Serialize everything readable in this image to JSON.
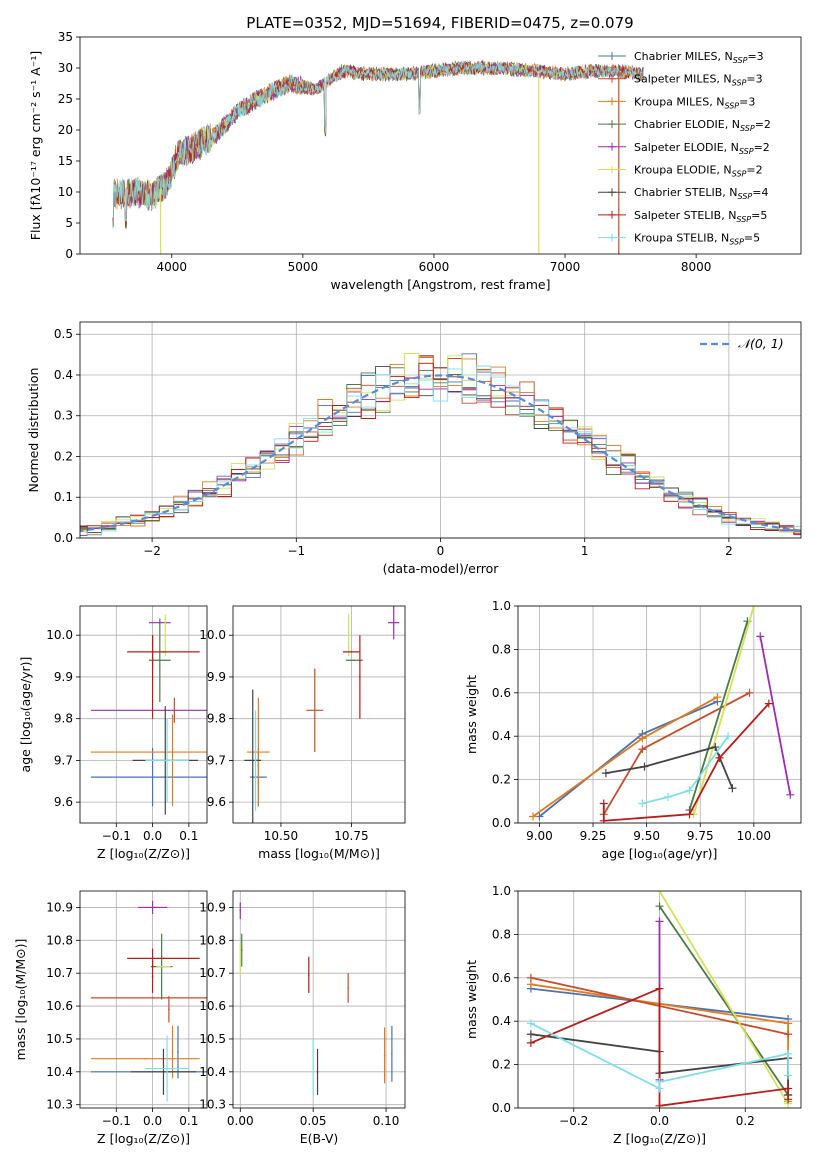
{
  "figure": {
    "title": "PLATE=0352, MJD=51694, FIBERID=0475, z=0.079"
  },
  "series_styles": [
    {
      "name": "Chabrier MILES",
      "color": "#4c72b0",
      "legend": "Chabrier MILES, N",
      "nssp": "3"
    },
    {
      "name": "Salpeter MILES",
      "color": "#c44e2c",
      "legend": "Salpeter MILES, N",
      "nssp": "3"
    },
    {
      "name": "Kroupa MILES",
      "color": "#e07b1f",
      "legend": "Kroupa MILES, N",
      "nssp": "3"
    },
    {
      "name": "Chabrier ELODIE",
      "color": "#4a7a4a",
      "legend": "Chabrier ELODIE, N",
      "nssp": "2"
    },
    {
      "name": "Salpeter ELODIE",
      "color": "#9b2fae",
      "legend": "Salpeter ELODIE, N",
      "nssp": "2"
    },
    {
      "name": "Kroupa ELODIE",
      "color": "#d4e157",
      "legend": "Kroupa ELODIE, N",
      "nssp": "2"
    },
    {
      "name": "Chabrier STELIB",
      "color": "#444444",
      "legend": "Chabrier STELIB, N",
      "nssp": "4"
    },
    {
      "name": "Salpeter STELIB",
      "color": "#b71c1c",
      "legend": "Salpeter STELIB, N",
      "nssp": "5"
    },
    {
      "name": "Kroupa STELIB",
      "color": "#80deea",
      "legend": "Kroupa STELIB, N",
      "nssp": "5"
    }
  ],
  "chart_data": [
    {
      "type": "line",
      "id": "spectrum",
      "title": "PLATE=0352, MJD=51694, FIBERID=0475, z=0.079",
      "xlabel": "wavelength [Angstrom, rest frame]",
      "ylabel": "Flux [fλ10⁻¹⁷ erg cm⁻² s⁻¹ A⁻¹]",
      "xlim": [
        3300,
        8800
      ],
      "ylim": [
        0,
        35
      ],
      "xticks": [
        4000,
        5000,
        6000,
        7000,
        8000
      ],
      "yticks": [
        0,
        5,
        10,
        15,
        20,
        25,
        30,
        35
      ],
      "legend_position": "right",
      "continuum": {
        "x": [
          3550,
          3700,
          3850,
          3950,
          4050,
          4200,
          4350,
          4500,
          4700,
          4900,
          5100,
          5300,
          5500,
          5800,
          6000,
          6200,
          6500,
          6800,
          7000,
          7200,
          7400,
          7600
        ],
        "y": [
          9.5,
          10,
          9.5,
          11,
          16,
          17.5,
          19.5,
          23,
          25.5,
          27.5,
          26.5,
          29.5,
          29,
          29,
          29.5,
          30,
          30,
          29.5,
          29,
          29.5,
          29.5,
          29
        ]
      },
      "features": {
        "drop_lines": [
          3915,
          6800,
          7410
        ],
        "narrow_dips": [
          {
            "x": 5170,
            "y": 19
          },
          {
            "x": 5890,
            "y": 22.5
          },
          {
            "x": 4305,
            "y": 17
          },
          {
            "x": 3550,
            "y": 4
          },
          {
            "x": 3650,
            "y": 4
          }
        ]
      }
    },
    {
      "type": "bar",
      "id": "residuals",
      "xlabel": "(data-model)/error",
      "ylabel": "Normed distribution",
      "xlim": [
        -2.5,
        2.5
      ],
      "ylim": [
        0,
        0.53
      ],
      "xticks": [
        -2,
        -1,
        0,
        1,
        2
      ],
      "yticks": [
        0.0,
        0.1,
        0.2,
        0.3,
        0.4,
        0.5
      ],
      "legend": "𝒩(0, 1)",
      "legend_position": "top-right",
      "bin_width": 0.1,
      "gaussian": {
        "mean": 0,
        "sigma": 1,
        "color": "#5b8bd6"
      }
    },
    {
      "type": "scatter",
      "id": "age-vs-Z",
      "xlabel": "Z [log₁₀(Z/Z⊙)]",
      "ylabel": "age  [log₁₀(age/yr)]",
      "xlim": [
        -0.2,
        0.15
      ],
      "ylim": [
        9.55,
        10.07
      ],
      "xticks": [
        -0.1,
        0.0,
        0.1
      ],
      "yticks": [
        9.6,
        9.7,
        9.8,
        9.9,
        10.0
      ],
      "points": [
        {
          "series": 0,
          "x": 0.0,
          "y": 9.66,
          "xerr": 0.17,
          "yerr": 0.07
        },
        {
          "series": 1,
          "x": 0.06,
          "y": 9.82,
          "xerr": 0.0,
          "yerr": 0.03
        },
        {
          "series": 2,
          "x": 0.0,
          "y": 9.72,
          "xerr": 0.17,
          "yerr": 0.0
        },
        {
          "series": 2,
          "x": 0.055,
          "y": 9.7,
          "xerr": 0.0,
          "yerr": 0.11
        },
        {
          "series": 3,
          "x": 0.02,
          "y": 9.94,
          "xerr": 0.03,
          "yerr": 0.1
        },
        {
          "series": 4,
          "x": 0.02,
          "y": 10.03,
          "xerr": 0.03,
          "yerr": 0.0
        },
        {
          "series": 4,
          "x": 0.0,
          "y": 9.82,
          "xerr": 0.17,
          "yerr": 0.0
        },
        {
          "series": 5,
          "x": 0.035,
          "y": 10.0,
          "xerr": 0.0,
          "yerr": 0.05
        },
        {
          "series": 6,
          "x": 0.035,
          "y": 9.7,
          "xerr": 0.09,
          "yerr": 0.13
        },
        {
          "series": 7,
          "x": 0.0,
          "y": 9.96,
          "xerr": 0.0,
          "yerr": 0.04
        },
        {
          "series": 7,
          "x": 0.03,
          "y": 9.96,
          "xerr": 0.1,
          "yerr": 0.0
        },
        {
          "series": 7,
          "x": 0.0,
          "y": 9.9,
          "xerr": 0.0,
          "yerr": 0.1
        },
        {
          "series": 8,
          "x": 0.04,
          "y": 9.7,
          "xerr": 0.06,
          "yerr": 0.1
        }
      ]
    },
    {
      "type": "scatter",
      "id": "age-vs-mass",
      "xlabel": "mass [log₁₀(M/M⊙)]",
      "ylabel": "",
      "xlim": [
        10.33,
        10.94
      ],
      "ylim": [
        9.55,
        10.07
      ],
      "xticks": [
        10.5,
        10.75
      ],
      "yticks": [
        9.6,
        9.7,
        9.8,
        9.9,
        10.0
      ],
      "points": [
        {
          "series": 0,
          "x": 10.42,
          "y": 9.66,
          "xerr": 0.03,
          "yerr": 0.07
        },
        {
          "series": 1,
          "x": 10.62,
          "y": 9.82,
          "xerr": 0.03,
          "yerr": 0.1
        },
        {
          "series": 2,
          "x": 10.42,
          "y": 9.72,
          "xerr": 0.04,
          "yerr": 0.13
        },
        {
          "series": 3,
          "x": 10.76,
          "y": 9.94,
          "xerr": 0.03,
          "yerr": 0.0
        },
        {
          "series": 4,
          "x": 10.9,
          "y": 10.03,
          "xerr": 0.02,
          "yerr": 0.04
        },
        {
          "series": 5,
          "x": 10.74,
          "y": 10.0,
          "xerr": 0.0,
          "yerr": 0.05
        },
        {
          "series": 6,
          "x": 10.4,
          "y": 9.7,
          "xerr": 0.03,
          "yerr": 0.17
        },
        {
          "series": 7,
          "x": 10.75,
          "y": 9.96,
          "xerr": 0.03,
          "yerr": 0.0
        },
        {
          "series": 7,
          "x": 10.78,
          "y": 9.9,
          "xerr": 0.0,
          "yerr": 0.1
        },
        {
          "series": 8,
          "x": 10.41,
          "y": 9.7,
          "xerr": 0.0,
          "yerr": 0.12
        }
      ]
    },
    {
      "type": "line",
      "id": "massweight-vs-age",
      "xlabel": "age  [log₁₀(age/yr)]",
      "ylabel": "mass weight",
      "xlim": [
        8.9,
        10.22
      ],
      "ylim": [
        0,
        1
      ],
      "xticks": [
        9.0,
        9.25,
        9.5,
        9.75,
        10.0
      ],
      "yticks": [
        0.0,
        0.2,
        0.4,
        0.6,
        0.8,
        1.0
      ],
      "series": [
        {
          "series": 0,
          "x": [
            9.0,
            9.48,
            9.83
          ],
          "y": [
            0.03,
            0.41,
            0.56
          ]
        },
        {
          "series": 2,
          "x": [
            8.97,
            9.48,
            9.83
          ],
          "y": [
            0.03,
            0.39,
            0.58
          ]
        },
        {
          "series": 1,
          "x": [
            9.3,
            9.48,
            9.98
          ],
          "y": [
            0.04,
            0.34,
            0.6
          ]
        },
        {
          "series": 3,
          "x": [
            9.7,
            9.97
          ],
          "y": [
            0.06,
            0.93
          ]
        },
        {
          "series": 4,
          "x": [
            10.03,
            10.17
          ],
          "y": [
            0.86,
            0.13
          ]
        },
        {
          "series": 5,
          "x": [
            9.72,
            10.0
          ],
          "y": [
            0.04,
            1.0
          ]
        },
        {
          "series": 6,
          "x": [
            9.31,
            9.49,
            9.82,
            9.9
          ],
          "y": [
            0.23,
            0.26,
            0.35,
            0.16
          ]
        },
        {
          "series": 7,
          "x": [
            9.3,
            9.3,
            9.7,
            9.84,
            10.07
          ],
          "y": [
            0.09,
            0.01,
            0.04,
            0.3,
            0.55
          ]
        },
        {
          "series": 8,
          "x": [
            9.48,
            9.6,
            9.7,
            9.88
          ],
          "y": [
            0.09,
            0.12,
            0.15,
            0.4
          ]
        }
      ]
    },
    {
      "type": "scatter",
      "id": "mass-vs-Z",
      "xlabel": "Z [log₁₀(Z/Z⊙)]",
      "ylabel": "mass [log₁₀(M/M⊙)]",
      "xlim": [
        -0.2,
        0.15
      ],
      "ylim": [
        10.29,
        10.95
      ],
      "xticks": [
        -0.1,
        0.0,
        0.1
      ],
      "yticks": [
        10.3,
        10.4,
        10.5,
        10.6,
        10.7,
        10.8,
        10.9
      ],
      "points": [
        {
          "series": 0,
          "x": 0.0,
          "y": 10.4,
          "xerr": 0.17,
          "yerr": 0.0
        },
        {
          "series": 0,
          "x": 0.07,
          "y": 10.46,
          "xerr": 0.0,
          "yerr": 0.08
        },
        {
          "series": 1,
          "x": 0.0,
          "y": 10.625,
          "xerr": 0.17,
          "yerr": 0.0
        },
        {
          "series": 1,
          "x": 0.045,
          "y": 10.59,
          "xerr": 0.0,
          "yerr": 0.04
        },
        {
          "series": 2,
          "x": -0.02,
          "y": 10.44,
          "xerr": 0.15,
          "yerr": 0.0
        },
        {
          "series": 2,
          "x": 0.055,
          "y": 10.46,
          "xerr": 0.0,
          "yerr": 0.08
        },
        {
          "series": 3,
          "x": 0.025,
          "y": 10.72,
          "xerr": 0.03,
          "yerr": 0.1
        },
        {
          "series": 4,
          "x": 0.0,
          "y": 10.9,
          "xerr": 0.04,
          "yerr": 0.02
        },
        {
          "series": 5,
          "x": 0.03,
          "y": 10.72,
          "xerr": 0.02,
          "yerr": 0.0
        },
        {
          "series": 6,
          "x": 0.03,
          "y": 10.4,
          "xerr": 0.09,
          "yerr": 0.07
        },
        {
          "series": 7,
          "x": 0.0,
          "y": 10.745,
          "xerr": 0.0,
          "yerr": 0.03
        },
        {
          "series": 7,
          "x": 0.03,
          "y": 10.745,
          "xerr": 0.1,
          "yerr": 0.0
        },
        {
          "series": 7,
          "x": 0.0,
          "y": 10.69,
          "xerr": 0.0,
          "yerr": 0.05
        },
        {
          "series": 8,
          "x": 0.04,
          "y": 10.41,
          "xerr": 0.06,
          "yerr": 0.1
        }
      ]
    },
    {
      "type": "scatter",
      "id": "mass-vs-EBV",
      "xlabel": "E(B-V)",
      "ylabel": "",
      "xlim": [
        -0.005,
        0.113
      ],
      "ylim": [
        10.29,
        10.95
      ],
      "xticks": [
        0.0,
        0.05,
        0.1
      ],
      "yticks": [
        10.3,
        10.4,
        10.5,
        10.6,
        10.7,
        10.8,
        10.9
      ],
      "points": [
        {
          "series": 0,
          "x": 0.104,
          "y": 10.455,
          "xerr": 0.0,
          "yerr": 0.085
        },
        {
          "series": 1,
          "x": 0.074,
          "y": 10.655,
          "xerr": 0.0,
          "yerr": 0.045
        },
        {
          "series": 2,
          "x": 0.099,
          "y": 10.45,
          "xerr": 0.0,
          "yerr": 0.085
        },
        {
          "series": 3,
          "x": 0.001,
          "y": 10.77,
          "xerr": 0.0,
          "yerr": 0.05
        },
        {
          "series": 4,
          "x": 0.0,
          "y": 10.89,
          "xerr": 0.0,
          "yerr": 0.025
        },
        {
          "series": 5,
          "x": 0.0,
          "y": 10.74,
          "xerr": 0.0,
          "yerr": 0.05
        },
        {
          "series": 6,
          "x": 0.053,
          "y": 10.4,
          "xerr": 0.0,
          "yerr": 0.07
        },
        {
          "series": 7,
          "x": 0.047,
          "y": 10.695,
          "xerr": 0.0,
          "yerr": 0.055
        },
        {
          "series": 8,
          "x": 0.05,
          "y": 10.415,
          "xerr": 0.0,
          "yerr": 0.085
        }
      ]
    },
    {
      "type": "line",
      "id": "massweight-vs-Z",
      "xlabel": "Z [log₁₀(Z/Z⊙)]",
      "ylabel": "mass weight",
      "xlim": [
        -0.33,
        0.33
      ],
      "ylim": [
        0,
        1
      ],
      "xticks": [
        -0.2,
        0.0,
        0.2
      ],
      "yticks": [
        0.0,
        0.2,
        0.4,
        0.6,
        0.8,
        1.0
      ],
      "series": [
        {
          "series": 0,
          "x": [
            -0.3,
            0.3
          ],
          "y": [
            0.55,
            0.41
          ]
        },
        {
          "series": 2,
          "x": [
            -0.3,
            0.3,
            0.3
          ],
          "y": [
            0.57,
            0.39,
            0.03
          ]
        },
        {
          "series": 1,
          "x": [
            -0.3,
            0.3
          ],
          "y": [
            0.6,
            0.34
          ]
        },
        {
          "series": 3,
          "x": [
            0.0,
            0.3
          ],
          "y": [
            0.93,
            0.06
          ]
        },
        {
          "series": 4,
          "x": [
            0.0,
            0.0
          ],
          "y": [
            0.86,
            0.13
          ]
        },
        {
          "series": 5,
          "x": [
            0.0,
            0.3
          ],
          "y": [
            1.0,
            0.02
          ]
        },
        {
          "series": 6,
          "x": [
            -0.3,
            0.0,
            0.0,
            0.3,
            0.3
          ],
          "y": [
            0.34,
            0.26,
            0.16,
            0.23,
            0.06
          ]
        },
        {
          "series": 7,
          "x": [
            -0.3,
            0.0,
            0.0,
            0.3,
            0.3
          ],
          "y": [
            0.3,
            0.55,
            0.01,
            0.09,
            0.04
          ]
        },
        {
          "series": 8,
          "x": [
            -0.3,
            0.0,
            0.0,
            0.3,
            0.3
          ],
          "y": [
            0.39,
            0.09,
            0.12,
            0.25,
            0.15
          ]
        }
      ]
    }
  ]
}
